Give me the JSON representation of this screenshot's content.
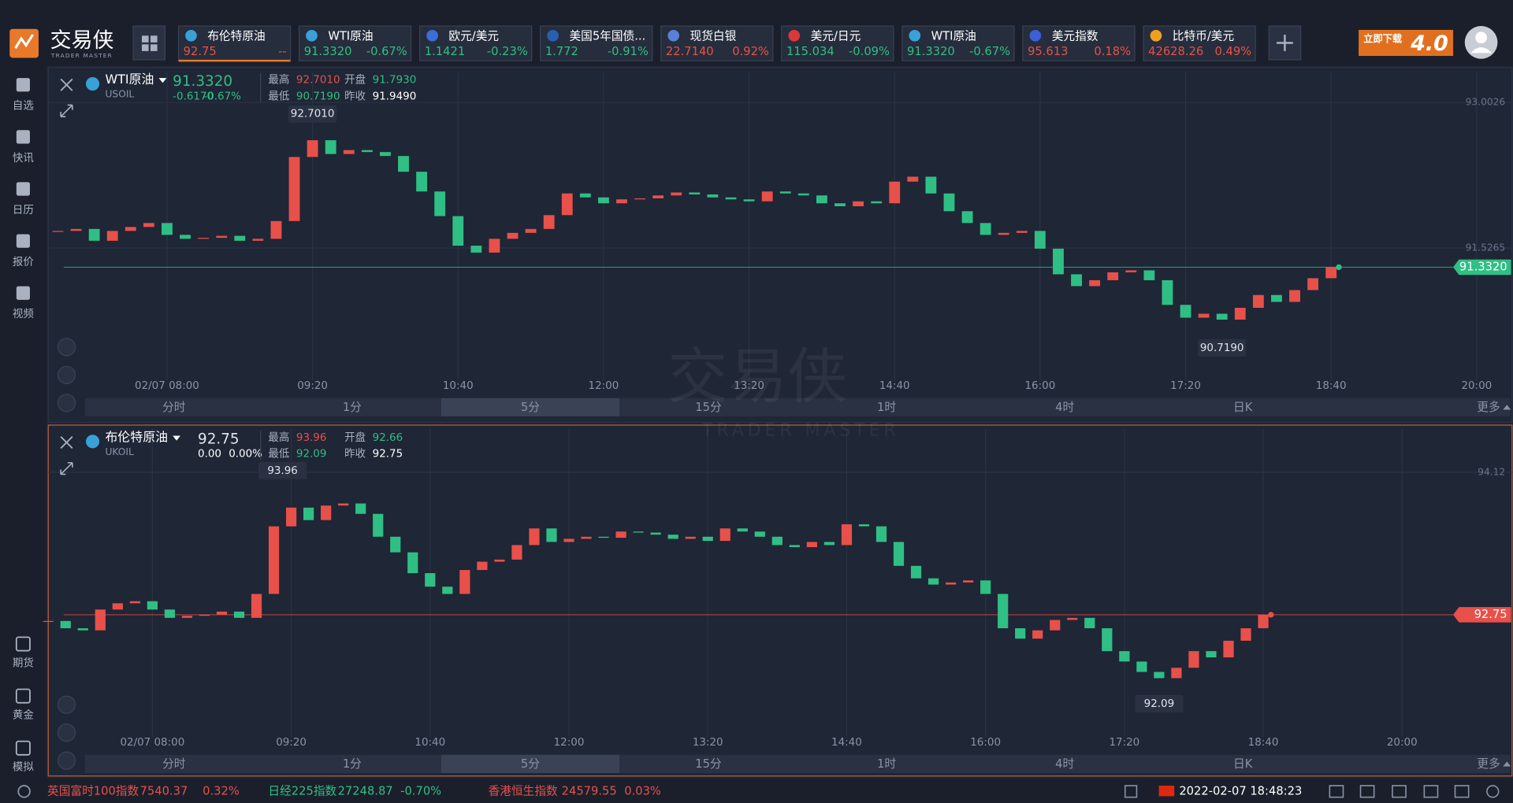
{
  "brand": {
    "name": "交易侠",
    "sub": "TRADER MASTER"
  },
  "tickers": [
    {
      "name": "布伦特原油",
      "price": "92.75",
      "change": "--",
      "color": "#e8504a"
    },
    {
      "name": "WTI原油",
      "price": "91.3320",
      "change": "-0.67%",
      "color": "#2fbf84"
    },
    {
      "name": "欧元/美元",
      "price": "1.1421",
      "change": "-0.23%",
      "color": "#2fbf84"
    },
    {
      "name": "美国5年国债...",
      "price": "1.772",
      "change": "-0.91%",
      "color": "#2fbf84"
    },
    {
      "name": "现货白银",
      "price": "22.7140",
      "change": "0.92%",
      "color": "#e8504a"
    },
    {
      "name": "美元/日元",
      "price": "115.034",
      "change": "-0.09%",
      "color": "#2fbf84"
    },
    {
      "name": "WTI原油",
      "price": "91.3320",
      "change": "-0.67%",
      "color": "#2fbf84"
    },
    {
      "name": "美元指数",
      "price": "95.613",
      "change": "0.18%",
      "color": "#e8504a"
    },
    {
      "name": "比特币/美元",
      "price": "42628.26",
      "change": "0.49%",
      "color": "#e8504a"
    }
  ],
  "promo": {
    "text": "立即下载",
    "version": "4.0"
  },
  "sidebar_top": [
    "自选",
    "快讯",
    "日历",
    "报价",
    "视频"
  ],
  "sidebar_bottom": [
    "期货",
    "黄金",
    "模拟"
  ],
  "panels": [
    {
      "symbol": "WTI原油",
      "code": "USOIL",
      "last": "91.3320",
      "change": "-0.6170",
      "change_pct": "-0.67%",
      "change_color": "#2fbf84",
      "stats": [
        {
          "label": "最高",
          "value": "92.7010",
          "color": "#e8504a"
        },
        {
          "label": "开盘",
          "value": "91.7930",
          "color": "#2fbf84"
        },
        {
          "label": "最低",
          "value": "90.7190",
          "color": "#2fbf84"
        },
        {
          "label": "昨收",
          "value": "91.9490",
          "color": "#ffffff"
        }
      ],
      "periods": [
        "分时",
        "1分",
        "5分",
        "15分",
        "1时",
        "4时",
        "日K",
        "更多"
      ],
      "active_period": 2,
      "chart": {
        "type": "candlestick",
        "up_color": "#e8504a",
        "down_color": "#2fbf84",
        "last_color": "#2fbf84",
        "xlim": [
          0,
          800
        ],
        "ylim": [
          90.18,
          93.26
        ],
        "xticks": [
          {
            "value": 60,
            "label": "02/07 08:00"
          },
          {
            "value": 140,
            "label": "09:20"
          },
          {
            "value": 220,
            "label": "10:40"
          },
          {
            "value": 300,
            "label": "12:00"
          },
          {
            "value": 380,
            "label": "13:20"
          },
          {
            "value": 460,
            "label": "14:40"
          },
          {
            "value": 540,
            "label": "16:00"
          },
          {
            "value": 620,
            "label": "17:20"
          },
          {
            "value": 700,
            "label": "18:40"
          },
          {
            "value": 780,
            "label": "20:00"
          }
        ],
        "yticks": [
          93.0026,
          91.5265
        ],
        "last_price": {
          "value": 91.332,
          "label": "91.3320"
        },
        "high": {
          "x": 140,
          "value": 92.701,
          "label": "92.7010"
        },
        "low": {
          "x": 640,
          "value": 90.719,
          "label": "90.7190"
        },
        "x": [
          0,
          10,
          20,
          30,
          40,
          50,
          60,
          70,
          80,
          90,
          100,
          110,
          120,
          130,
          140,
          150,
          160,
          170,
          180,
          190,
          200,
          210,
          220,
          230,
          240,
          250,
          260,
          270,
          280,
          290,
          300,
          310,
          320,
          330,
          340,
          350,
          360,
          370,
          380,
          390,
          400,
          410,
          420,
          430,
          440,
          450,
          460,
          470,
          480,
          490,
          500,
          510,
          520,
          530,
          540,
          550,
          560,
          570,
          580,
          590,
          600,
          610,
          620,
          630,
          640,
          650,
          660,
          670,
          680,
          690,
          700
        ],
        "closes": [
          91.7,
          91.72,
          91.6,
          91.7,
          91.74,
          91.78,
          91.66,
          91.62,
          91.63,
          91.65,
          91.6,
          91.62,
          91.8,
          92.45,
          92.62,
          92.48,
          92.52,
          92.5,
          92.46,
          92.3,
          92.1,
          91.85,
          91.55,
          91.48,
          91.62,
          91.68,
          91.72,
          91.86,
          92.08,
          92.04,
          91.98,
          92.02,
          92.03,
          92.06,
          92.09,
          92.07,
          92.04,
          92.02,
          92.0,
          92.1,
          92.08,
          92.06,
          91.98,
          91.95,
          92.0,
          91.98,
          92.2,
          92.25,
          92.08,
          91.9,
          91.78,
          91.66,
          91.68,
          91.7,
          91.52,
          91.26,
          91.14,
          91.2,
          91.28,
          91.3,
          91.2,
          90.95,
          90.82,
          90.86,
          90.8,
          90.92,
          91.05,
          90.98,
          91.1,
          91.22,
          91.332
        ]
      }
    },
    {
      "symbol": "布伦特原油",
      "code": "UKOIL",
      "last": "92.75",
      "change": "0.00",
      "change_pct": "0.00%",
      "change_color": "#ffffff",
      "stats": [
        {
          "label": "最高",
          "value": "93.96",
          "color": "#e8504a"
        },
        {
          "label": "开盘",
          "value": "92.66",
          "color": "#2fbf84"
        },
        {
          "label": "最低",
          "value": "92.09",
          "color": "#2fbf84"
        },
        {
          "label": "昨收",
          "value": "92.75",
          "color": "#ffffff"
        }
      ],
      "periods": [
        "分时",
        "1分",
        "5分",
        "15分",
        "1时",
        "4时",
        "日K",
        "更多"
      ],
      "active_period": 2,
      "chart": {
        "type": "candlestick",
        "up_color": "#e8504a",
        "down_color": "#2fbf84",
        "last_color": "#e8504a",
        "xlim": [
          0,
          840
        ],
        "ylim": [
          91.57,
          94.49
        ],
        "xticks": [
          {
            "value": 60,
            "label": "02/07 08:00"
          },
          {
            "value": 140,
            "label": "09:20"
          },
          {
            "value": 220,
            "label": "10:40"
          },
          {
            "value": 300,
            "label": "12:00"
          },
          {
            "value": 380,
            "label": "13:20"
          },
          {
            "value": 460,
            "label": "14:40"
          },
          {
            "value": 540,
            "label": "16:00"
          },
          {
            "value": 620,
            "label": "17:20"
          },
          {
            "value": 700,
            "label": "18:40"
          },
          {
            "value": 780,
            "label": "20:00"
          }
        ],
        "yticks": [
          94.12
        ],
        "last_price": 92.75,
        "high": {
          "x": 135,
          "value": 93.96,
          "label": "93.96"
        },
        "low": {
          "x": 640,
          "value": 92.09,
          "label": "92.09"
        },
        "x": [
          0,
          10,
          20,
          30,
          40,
          50,
          60,
          70,
          80,
          90,
          100,
          110,
          120,
          130,
          140,
          150,
          160,
          170,
          180,
          190,
          200,
          210,
          220,
          230,
          240,
          250,
          260,
          270,
          280,
          290,
          300,
          310,
          320,
          330,
          340,
          350,
          360,
          370,
          380,
          390,
          400,
          410,
          420,
          430,
          440,
          450,
          460,
          470,
          480,
          490,
          500,
          510,
          520,
          530,
          540,
          550,
          560,
          570,
          580,
          590,
          600,
          610,
          620,
          630,
          640,
          650,
          660,
          670,
          680,
          690,
          700
        ],
        "closes": [
          92.69,
          92.62,
          92.6,
          92.8,
          92.86,
          92.88,
          92.8,
          92.72,
          92.74,
          92.75,
          92.78,
          92.72,
          92.95,
          93.6,
          93.78,
          93.66,
          93.8,
          93.82,
          93.72,
          93.5,
          93.35,
          93.15,
          93.02,
          92.95,
          93.18,
          93.26,
          93.28,
          93.42,
          93.58,
          93.45,
          93.48,
          93.5,
          93.49,
          93.55,
          93.54,
          93.52,
          93.48,
          93.5,
          93.46,
          93.58,
          93.55,
          93.5,
          93.42,
          93.4,
          93.45,
          93.42,
          93.62,
          93.6,
          93.45,
          93.22,
          93.1,
          93.04,
          93.06,
          93.08,
          92.95,
          92.62,
          92.52,
          92.6,
          92.7,
          92.72,
          92.62,
          92.4,
          92.3,
          92.2,
          92.14,
          92.24,
          92.4,
          92.34,
          92.5,
          92.62,
          92.75
        ]
      }
    }
  ],
  "footer": [
    {
      "name": "英国富时100指数",
      "value": "7540.37",
      "change": "0.32%",
      "color": "#e8504a"
    },
    {
      "name": "日经225指数",
      "value": "27248.87",
      "change": "-0.70%",
      "color": "#2fbf84"
    },
    {
      "name": "香港恒生指数",
      "value": "24579.55",
      "change": "0.03%",
      "color": "#e8504a"
    }
  ],
  "datetime": "2022-02-07 18:48:23"
}
